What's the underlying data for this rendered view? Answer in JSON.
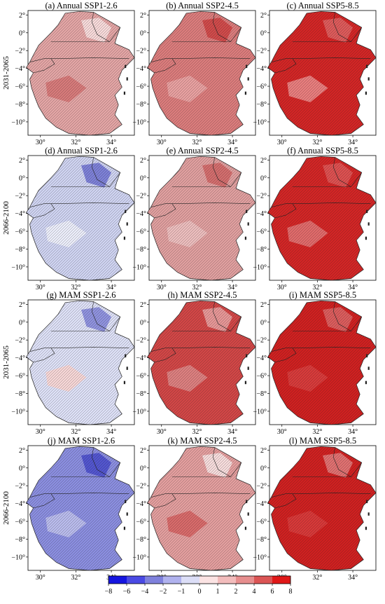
{
  "figure": {
    "row_labels": [
      "2031-2065",
      "2066-2100",
      "2031-2065",
      "2066-2100"
    ],
    "panels": [
      {
        "title": "(a) Annual SSP1-2.6",
        "fill": "#e3a5a5",
        "patches": [
          {
            "c": "#f7dada"
          },
          {
            "c": "#d77a7a"
          }
        ]
      },
      {
        "title": "(b) Annual SSP2-4.5",
        "fill": "#db7c7c",
        "patches": [
          {
            "c": "#d04a4a"
          },
          {
            "c": "#e8a0a0"
          }
        ]
      },
      {
        "title": "(c) Annual SSP5-8.5",
        "fill": "#d32525",
        "patches": [
          {
            "c": "#dd5a5a"
          },
          {
            "c": "#e87d7d"
          }
        ]
      },
      {
        "title": "(d) Annual SSP1-2.6",
        "fill": "#cfd3f1",
        "patches": [
          {
            "c": "#7d80d7"
          },
          {
            "c": "#ebedfa"
          }
        ]
      },
      {
        "title": "(e) Annual SSP2-4.5",
        "fill": "#e09f9f",
        "patches": [
          {
            "c": "#d36d6d"
          },
          {
            "c": "#ecbdbd"
          }
        ]
      },
      {
        "title": "(f) Annual SSP5-8.5",
        "fill": "#d32525",
        "patches": [
          {
            "c": "#dd5050"
          },
          {
            "c": "#e06a6a"
          }
        ]
      },
      {
        "title": "(g) MAM SSP1-2.6",
        "fill": "#dde0f6",
        "patches": [
          {
            "c": "#8f92de"
          },
          {
            "c": "#f6d6d6"
          }
        ]
      },
      {
        "title": "(h) MAM SSP2-4.5",
        "fill": "#d24646",
        "patches": [
          {
            "c": "#e69696"
          },
          {
            "c": "#dc7f7f"
          }
        ]
      },
      {
        "title": "(i) MAM SSP5-8.5",
        "fill": "#d02020",
        "patches": [
          {
            "c": "#db5c5c"
          },
          {
            "c": "#d83a3a"
          }
        ]
      },
      {
        "title": "(j) MAM SSP1-2.6",
        "fill": "#8b8ee0",
        "patches": [
          {
            "c": "#5255cf"
          },
          {
            "c": "#b9bbec"
          }
        ]
      },
      {
        "title": "(k) MAM SSP2-4.5",
        "fill": "#e39e9e",
        "patches": [
          {
            "c": "#f6dcdc"
          },
          {
            "c": "#d86a6a"
          }
        ]
      },
      {
        "title": "(l) MAM SSP5-8.5",
        "fill": "#d02020",
        "patches": [
          {
            "c": "#e07070"
          },
          {
            "c": "#d83838"
          }
        ]
      }
    ],
    "lon_ticks": [
      "30°",
      "32°",
      "34°"
    ],
    "lat_ticks": [
      "2°",
      "0°",
      "−2°",
      "−4°",
      "−6°",
      "−8°",
      "−10°"
    ],
    "colorbar": {
      "levels": [
        -8,
        -6,
        -4,
        -2,
        -1,
        0,
        1,
        2,
        4,
        6,
        8
      ],
      "tick_labels": [
        "−8",
        "−6",
        "−4",
        "−2",
        "−1",
        "0",
        "1",
        "2",
        "4",
        "6",
        "8"
      ],
      "colors": [
        "#1515e0",
        "#4a4ae4",
        "#7f81dc",
        "#b0b2ee",
        "#dcdef7",
        "#fbe3e3",
        "#f2bcbc",
        "#e68e8e",
        "#db5555",
        "#e01818"
      ]
    }
  }
}
